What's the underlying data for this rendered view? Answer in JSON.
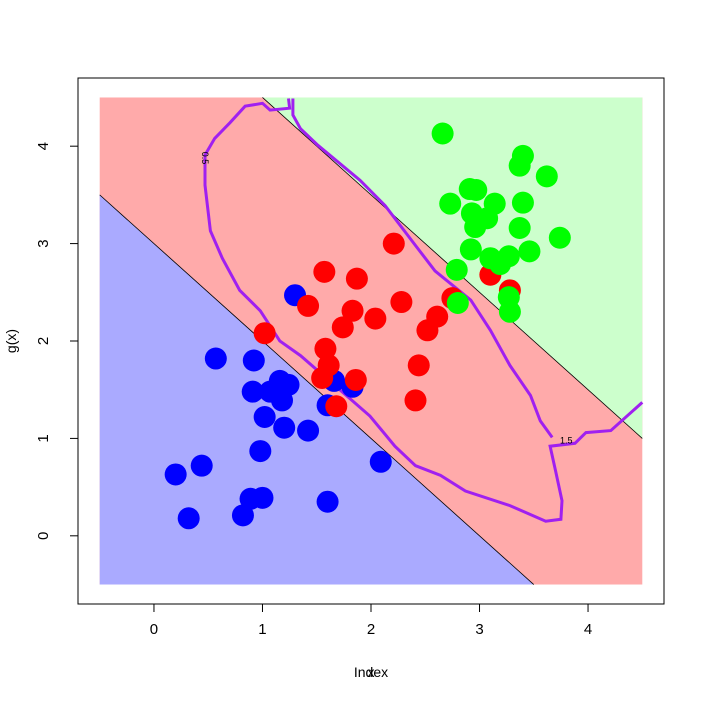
{
  "chart_data": {
    "type": "scatter",
    "xlabels": [
      "Index",
      "x"
    ],
    "ylabel": "g(x)",
    "xlim": [
      -0.7,
      4.7
    ],
    "ylim": [
      -0.7,
      4.7
    ],
    "xticks": [
      0,
      1,
      2,
      3,
      4
    ],
    "yticks": [
      0,
      1,
      2,
      3,
      4
    ],
    "region_xlim": [
      -0.5,
      4.5
    ],
    "region_ylim": [
      -0.5,
      4.5
    ],
    "regions": {
      "colors": [
        "#aaaaff",
        "#ffaaaa",
        "#ccffcc"
      ],
      "boundary_slope": -1,
      "boundary_intercepts": [
        3,
        5.5
      ]
    },
    "series": [
      {
        "color": "#0000ff",
        "x": [
          0.2,
          0.44,
          0.32,
          0.82,
          0.89,
          1.0,
          0.57,
          0.92,
          0.91,
          1.07,
          1.16,
          1.24,
          1.18,
          1.02,
          1.2,
          0.98,
          1.42,
          1.6,
          2.09,
          1.3,
          1.66,
          1.6,
          1.83
        ],
        "values": [
          0.63,
          0.72,
          0.18,
          0.21,
          0.38,
          0.39,
          1.82,
          1.8,
          1.48,
          1.48,
          1.59,
          1.55,
          1.39,
          1.22,
          1.11,
          0.87,
          1.08,
          0.35,
          0.76,
          2.47,
          1.59,
          1.34,
          1.53
        ]
      },
      {
        "color": "#ff0000",
        "x": [
          1.02,
          1.42,
          1.57,
          1.87,
          2.21,
          2.28,
          1.83,
          1.74,
          2.04,
          1.58,
          1.61,
          1.55,
          1.68,
          1.86,
          2.44,
          2.41,
          2.52,
          2.61,
          2.75,
          3.1,
          3.28
        ],
        "values": [
          2.08,
          2.36,
          2.71,
          2.64,
          3.0,
          2.4,
          2.31,
          2.14,
          2.23,
          1.92,
          1.75,
          1.62,
          1.33,
          1.6,
          1.75,
          1.39,
          2.11,
          2.25,
          2.44,
          2.68,
          2.52
        ]
      },
      {
        "color": "#00ff00",
        "x": [
          2.66,
          3.4,
          3.37,
          3.62,
          2.91,
          2.97,
          2.73,
          3.14,
          3.4,
          2.93,
          3.07,
          2.96,
          3.37,
          3.74,
          2.92,
          3.46,
          3.1,
          3.19,
          3.27,
          2.79,
          3.27,
          3.28,
          2.8
        ],
        "values": [
          4.13,
          3.9,
          3.8,
          3.69,
          3.56,
          3.55,
          3.41,
          3.41,
          3.42,
          3.31,
          3.26,
          3.17,
          3.16,
          3.06,
          2.94,
          2.92,
          2.85,
          2.79,
          2.87,
          2.73,
          2.45,
          2.3,
          2.39
        ]
      }
    ],
    "contours": {
      "color": "#a020f0",
      "lines": [
        {
          "label": "0.5",
          "x": [
            1.24,
            1.25,
            1.07,
            1.0,
            0.84,
            0.7,
            0.56,
            0.47,
            0.47,
            0.52,
            0.63,
            0.79,
            0.98,
            1.16,
            1.35,
            1.67,
            1.99,
            2.22,
            2.41,
            2.64,
            2.87,
            3.28,
            3.61,
            3.75,
            3.76,
            3.7,
            3.65,
            3.88,
            3.98,
            4.21,
            4.5
          ],
          "y": [
            4.49,
            4.39,
            4.37,
            4.44,
            4.41,
            4.24,
            4.08,
            3.91,
            3.6,
            3.13,
            2.85,
            2.52,
            2.31,
            2.0,
            1.85,
            1.54,
            1.23,
            0.92,
            0.72,
            0.62,
            0.46,
            0.31,
            0.15,
            0.17,
            0.36,
            0.67,
            0.92,
            0.95,
            1.06,
            1.08,
            1.37
          ]
        },
        {
          "label": "1.5",
          "x": [
            1.28,
            1.28,
            1.35,
            1.51,
            1.9,
            2.13,
            2.41,
            2.59,
            2.92,
            3.1,
            3.28,
            3.47,
            3.56,
            3.67
          ],
          "y": [
            4.49,
            4.32,
            4.18,
            4.01,
            3.65,
            3.39,
            2.98,
            2.72,
            2.42,
            2.11,
            1.75,
            1.44,
            1.18,
            1.01
          ]
        }
      ]
    }
  }
}
